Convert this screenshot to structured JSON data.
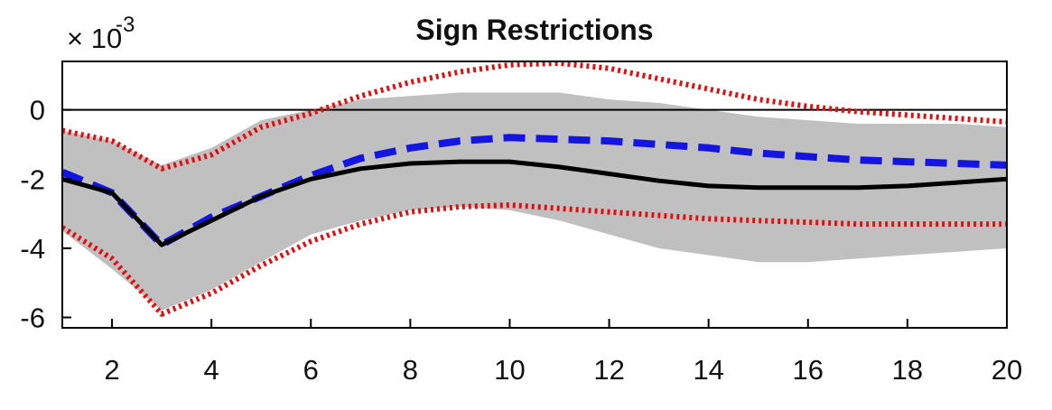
{
  "chart_data": {
    "type": "line",
    "title": "Sign Restrictions",
    "xlabel": "",
    "ylabel": "",
    "y_exponent_base": "× 10",
    "y_exponent_power": "-3",
    "xlim": [
      1,
      20
    ],
    "ylim": [
      -6.3,
      1.4
    ],
    "xticks": [
      2,
      4,
      6,
      8,
      10,
      12,
      14,
      16,
      18,
      20
    ],
    "yticks": [
      0,
      -2,
      -4,
      -6
    ],
    "grid": false,
    "x": [
      1,
      2,
      3,
      4,
      5,
      6,
      7,
      8,
      9,
      10,
      11,
      12,
      13,
      14,
      15,
      16,
      17,
      18,
      19,
      20
    ],
    "band": {
      "lower": [
        -3.5,
        -4.6,
        -5.8,
        -5.2,
        -4.4,
        -3.6,
        -3.2,
        -2.9,
        -2.8,
        -2.9,
        -3.2,
        -3.6,
        -4.0,
        -4.2,
        -4.4,
        -4.4,
        -4.3,
        -4.2,
        -4.1,
        -4.0
      ],
      "upper": [
        -0.6,
        -0.9,
        -1.6,
        -1.1,
        -0.3,
        0.0,
        0.3,
        0.4,
        0.5,
        0.5,
        0.5,
        0.3,
        0.2,
        0.0,
        -0.2,
        -0.3,
        -0.4,
        -0.4,
        -0.4,
        -0.5
      ],
      "color": "#c0c0c0"
    },
    "series": [
      {
        "values": [
          -2.0,
          -2.4,
          -3.9,
          -3.2,
          -2.5,
          -2.0,
          -1.7,
          -1.55,
          -1.5,
          -1.5,
          -1.65,
          -1.85,
          -2.05,
          -2.2,
          -2.25,
          -2.25,
          -2.25,
          -2.2,
          -2.1,
          -2.0
        ],
        "color": "#000000",
        "style": "solid"
      },
      {
        "values": [
          -1.8,
          -2.4,
          -3.9,
          -3.1,
          -2.5,
          -1.9,
          -1.4,
          -1.1,
          -0.9,
          -0.8,
          -0.85,
          -0.9,
          -1.0,
          -1.1,
          -1.25,
          -1.35,
          -1.45,
          -1.5,
          -1.55,
          -1.6
        ],
        "color": "#1515e0",
        "style": "dashed"
      },
      {
        "values": [
          -0.6,
          -0.9,
          -1.7,
          -1.3,
          -0.5,
          -0.1,
          0.4,
          0.8,
          1.1,
          1.3,
          1.35,
          1.2,
          0.9,
          0.6,
          0.3,
          0.1,
          -0.05,
          -0.15,
          -0.25,
          -0.35
        ],
        "color": "#e01010",
        "style": "dotted"
      },
      {
        "values": [
          -3.4,
          -4.3,
          -5.9,
          -5.3,
          -4.5,
          -3.8,
          -3.3,
          -2.95,
          -2.8,
          -2.75,
          -2.85,
          -2.95,
          -3.05,
          -3.15,
          -3.2,
          -3.25,
          -3.3,
          -3.3,
          -3.3,
          -3.3
        ],
        "color": "#e01010",
        "style": "dotted"
      }
    ],
    "zero_line": 0
  }
}
